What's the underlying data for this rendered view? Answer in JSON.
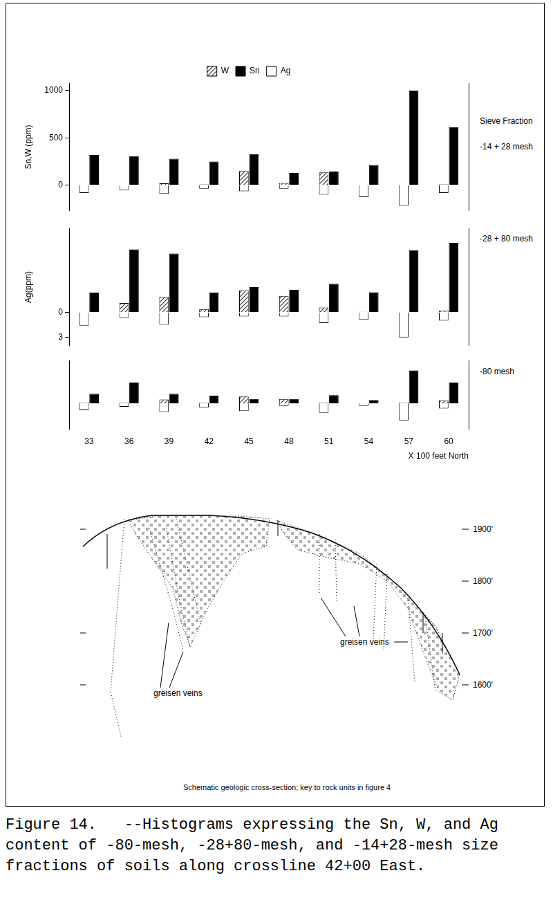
{
  "column_heading": "Sieve Fraction",
  "chart_data": [
    {
      "type": "bar",
      "title": "-14 + 28 mesh",
      "categories": [
        null,
        null,
        null,
        null,
        null,
        null,
        null,
        null,
        null,
        null
      ],
      "ylabel": "Sn,W (ppm)",
      "ylim": [
        -270,
        1080
      ],
      "yticks": [
        0,
        500,
        1000
      ],
      "y2lim": [
        3,
        -12
      ],
      "legend": "top",
      "grid": false,
      "series": [
        {
          "name": "W",
          "color": "#333333",
          "values": [
            5,
            5,
            20,
            10,
            150,
            25,
            135,
            5,
            0,
            10
          ]
        },
        {
          "name": "Sn",
          "color": "#000000",
          "values": [
            320,
            307,
            280,
            250,
            330,
            130,
            145,
            215,
            1000,
            615
          ]
        },
        {
          "name": "Ag",
          "color": "#ffffff",
          "axis": "y2",
          "values": [
            0.9,
            0.6,
            1.0,
            0.4,
            0.7,
            0.4,
            1.1,
            1.4,
            2.4,
            0.9
          ]
        }
      ]
    },
    {
      "type": "bar",
      "title": "-28 + 80 mesh",
      "categories": [
        null,
        null,
        null,
        null,
        null,
        null,
        null,
        null,
        null,
        null
      ],
      "ylim": [
        -360,
        900
      ],
      "y2label": "Ag(ppm)",
      "y2lim": [
        4,
        -10
      ],
      "y2ticks": [
        0,
        3
      ],
      "grid": false,
      "series": [
        {
          "name": "W",
          "color": "#333333",
          "values": [
            0,
            100,
            165,
            35,
            235,
            175,
            50,
            5,
            0,
            15
          ]
        },
        {
          "name": "Sn",
          "color": "#000000",
          "values": [
            210,
            675,
            630,
            210,
            270,
            240,
            305,
            215,
            667,
            745
          ]
        },
        {
          "name": "Ag",
          "color": "#ffffff",
          "axis": "y2",
          "values": [
            1.6,
            0.7,
            1.5,
            0.6,
            0.5,
            0.5,
            1.3,
            0.9,
            3.0,
            1.0
          ]
        }
      ]
    },
    {
      "type": "bar",
      "title": "-80 mesh",
      "categories": [
        "33",
        "36",
        "39",
        "42",
        "45",
        "48",
        "51",
        "54",
        "57",
        "60"
      ],
      "xlabel": "X 100 feet North",
      "ylim": [
        -270,
        450
      ],
      "y2lim": [
        3,
        -5
      ],
      "grid": false,
      "series": [
        {
          "name": "W",
          "color": "#333333",
          "values": [
            5,
            5,
            40,
            5,
            70,
            45,
            5,
            0,
            5,
            30
          ]
        },
        {
          "name": "Sn",
          "color": "#000000",
          "values": [
            100,
            220,
            100,
            80,
            45,
            45,
            85,
            35,
            345,
            220
          ]
        },
        {
          "name": "Ag",
          "color": "#ffffff",
          "axis": "y2",
          "values": [
            0.8,
            0.4,
            1.0,
            0.5,
            0.9,
            0.3,
            1.1,
            0.3,
            2.0,
            0.6
          ]
        }
      ]
    }
  ],
  "cross_section": {
    "elevation_labels": [
      "1900'",
      "1800'",
      "1700'",
      "1600'"
    ],
    "vein_labels": [
      "greisen veins",
      "greisen veins"
    ],
    "caption": "Schematic geologic cross-section; key to rock units in figure 4"
  },
  "caption": "Figure 14.   --Histograms expressing the Sn, W, and Ag content of -80-mesh, -28+80-mesh, and -14+28-mesh size fractions of soils along crossline 42+00 East."
}
